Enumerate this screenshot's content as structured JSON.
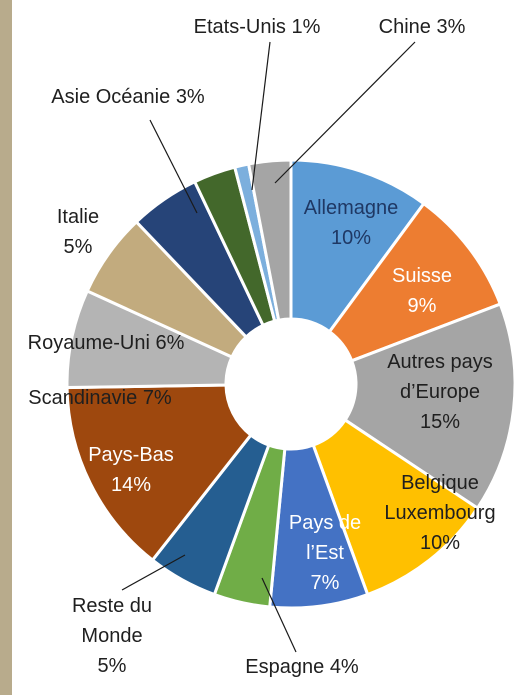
{
  "chart_data": {
    "type": "donut",
    "categories": [
      "Allemagne",
      "Suisse",
      "Autres pays d’Europe",
      "Belgique Luxembourg",
      "Pays de l’Est",
      "Espagne",
      "Reste du Monde",
      "Pays-Bas",
      "Scandinavie",
      "Royaume-Uni",
      "Italie",
      "Asie Océanie",
      "Etats-Unis",
      "Chine"
    ],
    "values": [
      10,
      9,
      15,
      10,
      7,
      4,
      5,
      14,
      7,
      6,
      5,
      3,
      1,
      3
    ],
    "value_labels": [
      "10%",
      "9%",
      "15%",
      "10%",
      "7%",
      "4%",
      "5%",
      "14%",
      "7%",
      "6%",
      "5%",
      "3%",
      "1%",
      "3%"
    ],
    "colors": [
      "#5b9bd5",
      "#ed7d31",
      "#a5a5a5",
      "#ffc000",
      "#4472c4",
      "#70ad47",
      "#255e91",
      "#9e480e",
      "#b4b4b4",
      "#c2ab7e",
      "#264478",
      "#43682b",
      "#7cafdd",
      "#a5a5a5"
    ]
  }
}
